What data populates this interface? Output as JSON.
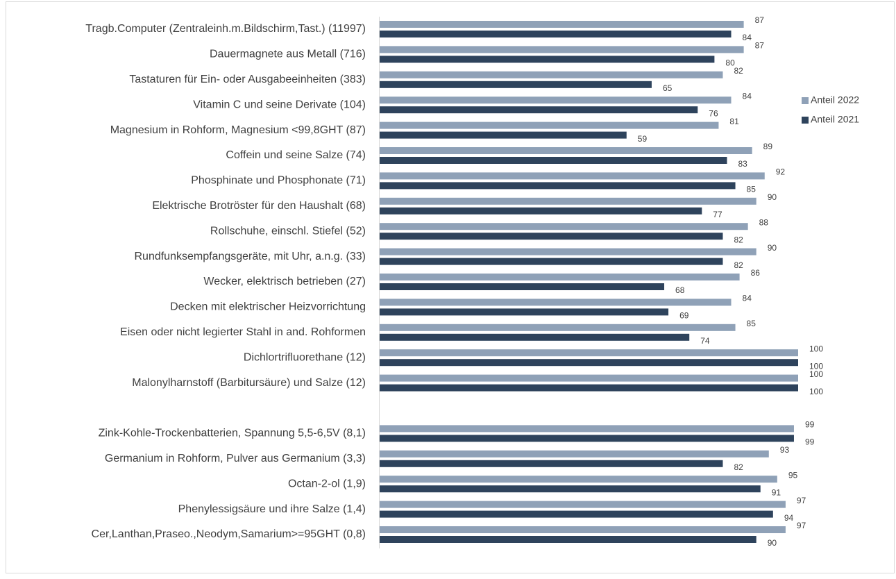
{
  "chart_data": {
    "type": "bar",
    "orientation": "horizontal",
    "categories": [
      "Tragb.Computer (Zentraleinh.m.Bildschirm,Tast.) (11997)",
      "Dauermagnete aus Metall  (716)",
      "Tastaturen für Ein- oder Ausgabeeinheiten (383)",
      "Vitamin C und seine Derivate (104)",
      "Magnesium in Rohform, Magnesium <99,8GHT (87)",
      "Coffein und seine Salze (74)",
      "Phosphinate und Phosphonate (71)",
      "Elektrische Brotröster für den Haushalt (68)",
      "Rollschuhe, einschl. Stiefel (52)",
      "Rundfunksempfangsgeräte, mit Uhr, a.n.g. (33)",
      "Wecker, elektrisch betrieben (27)",
      "Decken mit elektrischer Heizvorrichtung",
      "Eisen oder nicht legierter Stahl in and. Rohformen",
      "Dichlortrifluorethane (12)",
      "Malonylharnstoff (Barbitursäure) und Salze (12)",
      null,
      "Zink-Kohle-Trockenbatterien, Spannung 5,5-6,5V  (8,1)",
      "Germanium in Rohform, Pulver aus Germanium (3,3)",
      "Octan-2-ol (1,9)",
      "Phenylessigsäure und ihre Salze (1,4)",
      "Cer,Lanthan,Praseo.,Neodym,Samarium>=95GHT (0,8)"
    ],
    "series": [
      {
        "name": "Anteil 2022",
        "color": "#8fa1b7",
        "values": [
          87,
          87,
          82,
          84,
          81,
          89,
          92,
          90,
          88,
          90,
          86,
          84,
          85,
          100,
          100,
          null,
          99,
          93,
          95,
          97,
          97
        ]
      },
      {
        "name": "Anteil 2021",
        "color": "#2e435c",
        "values": [
          84,
          80,
          65,
          76,
          59,
          83,
          85,
          77,
          82,
          82,
          68,
          69,
          74,
          100,
          100,
          null,
          99,
          82,
          91,
          94,
          90
        ]
      }
    ],
    "xlim": [
      0,
      100
    ],
    "legend": "right"
  }
}
